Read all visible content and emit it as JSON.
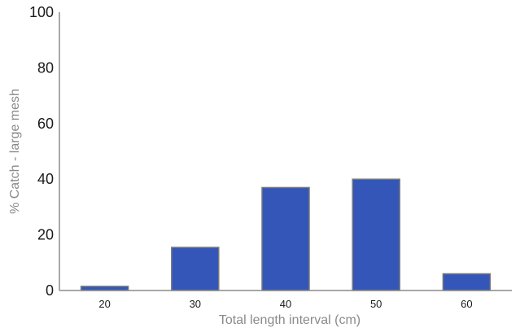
{
  "chart_data": {
    "type": "bar",
    "title": "",
    "xlabel": "Total length interval (cm)",
    "ylabel": "% Catch - large mesh",
    "categories": [
      "20",
      "30",
      "40",
      "50",
      "60"
    ],
    "values": [
      1.5,
      15.5,
      37,
      40,
      6
    ],
    "ylim": [
      0,
      100
    ],
    "yticks": [
      "0",
      "20",
      "40",
      "60",
      "80",
      "100"
    ],
    "grid": false,
    "legend": "none"
  },
  "colors": {
    "bar_fill": "#3456b8",
    "bar_stroke": "#7a7a7a",
    "axis": "#8c8c8c",
    "tick_text": "#1a1a1a",
    "label_text": "#8a8a8a"
  }
}
